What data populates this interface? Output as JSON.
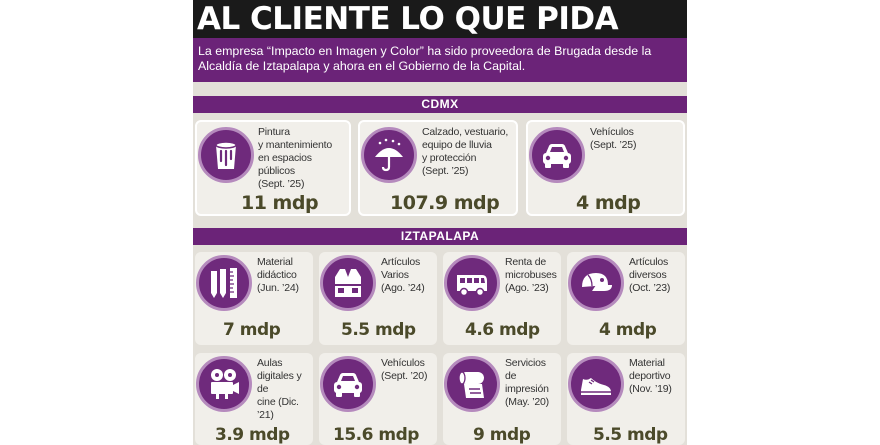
{
  "title": "AL CLIENTE LO QUE PIDA",
  "subtitle": "La empresa “Impacto en Imagen y Color” ha sido proveedora de Brugada desde la Alcaldía de Iztapalapa y ahora en el Gobierno de la Capital.",
  "colors": {
    "purple": "#6b2378",
    "amount": "#4b4a2a",
    "background": "#e3e0d9"
  },
  "sections": {
    "cdmx": {
      "label": "CDMX",
      "items": [
        {
          "icon": "paint-bucket-icon",
          "lines": [
            "Pintura",
            "y mantenimiento",
            "en espacios públicos",
            "(Sept. ’25)"
          ],
          "amount": "11 mdp"
        },
        {
          "icon": "umbrella-icon",
          "lines": [
            "Calzado, vestuario,",
            "equipo de lluvia",
            "y protección",
            "(Sept. ’25)"
          ],
          "amount": "107.9 mdp"
        },
        {
          "icon": "car-icon",
          "lines": [
            "Vehículos",
            "(Sept. ’25)"
          ],
          "amount": "4 mdp"
        }
      ]
    },
    "iztapalapa": {
      "label": "IZTAPALAPA",
      "items": [
        {
          "icon": "pencils-ruler-icon",
          "lines": [
            "Material",
            "didáctico",
            "(Jun. ’24)"
          ],
          "amount": "7 mdp"
        },
        {
          "icon": "vest-icon",
          "lines": [
            "Artículos",
            "Varios",
            "(Ago. ’24)"
          ],
          "amount": "5.5 mdp"
        },
        {
          "icon": "minibus-icon",
          "lines": [
            "Renta de",
            "microbuses",
            "(Ago. ’23)"
          ],
          "amount": "4.6 mdp"
        },
        {
          "icon": "cap-icon",
          "lines": [
            "Artículos",
            "diversos",
            "(Oct. ’23)"
          ],
          "amount": "4 mdp"
        },
        {
          "icon": "film-projector-icon",
          "lines": [
            "Aulas",
            "digitales y de",
            "cine (Dic. ’21)"
          ],
          "amount": "3.9 mdp"
        },
        {
          "icon": "car-icon",
          "lines": [
            "Vehículos",
            "(Sept. ’20)"
          ],
          "amount": "15.6 mdp"
        },
        {
          "icon": "paper-roll-icon",
          "lines": [
            "Servicios",
            "de impresión",
            "(May. ’20)"
          ],
          "amount": "9 mdp"
        },
        {
          "icon": "sneaker-icon",
          "lines": [
            "Material",
            "deportivo",
            "(Nov. ’19)"
          ],
          "amount": "5.5 mdp"
        }
      ]
    }
  }
}
